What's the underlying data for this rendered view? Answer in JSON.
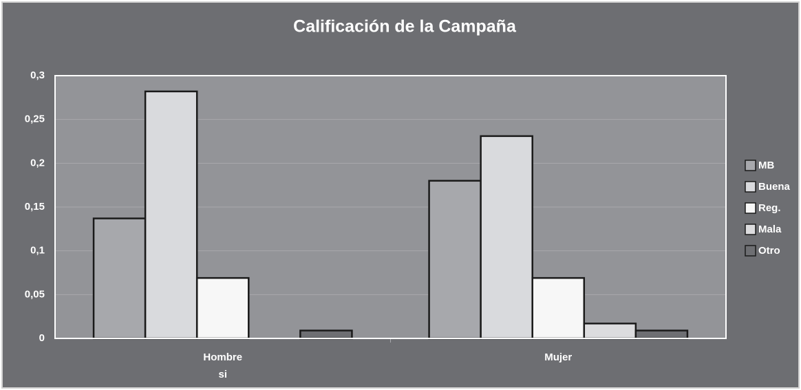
{
  "chart_data": {
    "type": "bar",
    "title": "Calificación de la Campaña",
    "categories": [
      "Hombre",
      "Mujer"
    ],
    "category_sublabels": [
      "si",
      null
    ],
    "series": [
      {
        "name": "MB",
        "color": "#a7a8ac",
        "values": [
          0.137,
          0.18
        ]
      },
      {
        "name": "Buena",
        "color": "#d9dadd",
        "values": [
          0.282,
          0.231
        ]
      },
      {
        "name": "Reg.",
        "color": "#f7f7f7",
        "values": [
          0.069,
          0.069
        ]
      },
      {
        "name": "Mala",
        "color": "#dcdcde",
        "values": [
          0,
          0.017
        ]
      },
      {
        "name": "Otro",
        "color": "#6e6f73",
        "values": [
          0.009,
          0.009
        ]
      }
    ],
    "ylim": [
      0,
      0.3
    ],
    "yticks": [
      {
        "value": 0,
        "label": "0"
      },
      {
        "value": 0.05,
        "label": "0,05"
      },
      {
        "value": 0.1,
        "label": "0,1"
      },
      {
        "value": 0.15,
        "label": "0,15"
      },
      {
        "value": 0.2,
        "label": "0,2"
      },
      {
        "value": 0.25,
        "label": "0,25"
      },
      {
        "value": 0.3,
        "label": "0,3"
      }
    ],
    "grid": true,
    "legend": "right"
  }
}
